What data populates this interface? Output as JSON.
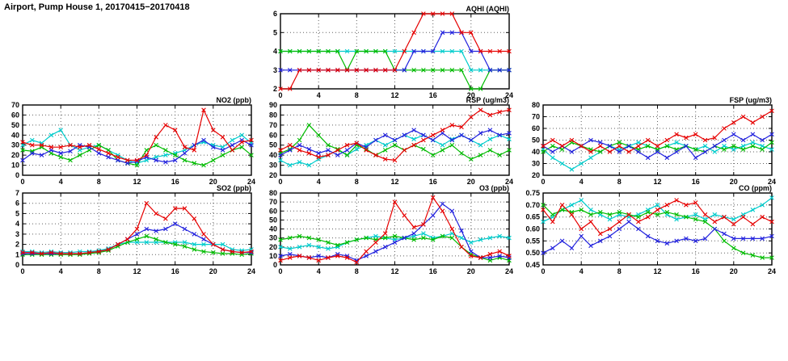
{
  "page": {
    "title": "Airport, Pump House 1, 20170415−20170418"
  },
  "chart_data": [
    {
      "type": "line",
      "title": "AQHI (AQHI)",
      "xlim": [
        0,
        24
      ],
      "xticks": [
        0,
        4,
        8,
        12,
        16,
        20,
        24
      ],
      "ylim": [
        2,
        6
      ],
      "yticks": [
        2,
        3,
        4,
        5,
        6
      ],
      "ytick_labels": [
        "2",
        "3",
        "4",
        "5",
        "6"
      ],
      "grid": true,
      "x_start": 0,
      "x_step": 1,
      "series": [
        {
          "name": "series-cyan",
          "color": "#00cccc",
          "values": [
            4,
            4,
            4,
            4,
            4,
            4,
            4,
            4,
            4,
            4,
            4,
            4,
            4,
            4,
            4,
            4,
            4,
            4,
            4,
            4,
            3,
            3,
            3,
            3,
            3
          ]
        },
        {
          "name": "series-green",
          "color": "#00bb00",
          "values": [
            4,
            4,
            4,
            4,
            4,
            4,
            4,
            3,
            4,
            4,
            4,
            4,
            3,
            3,
            3,
            3,
            3,
            3,
            3,
            3,
            2,
            2,
            3,
            3,
            3
          ]
        },
        {
          "name": "series-blue",
          "color": "#2222dd",
          "values": [
            3,
            3,
            3,
            3,
            3,
            3,
            3,
            3,
            3,
            3,
            3,
            3,
            3,
            3,
            4,
            4,
            4,
            5,
            5,
            5,
            4,
            4,
            3,
            3,
            3
          ]
        },
        {
          "name": "series-red",
          "color": "#e60000",
          "values": [
            2,
            2,
            3,
            3,
            3,
            3,
            3,
            3,
            3,
            3,
            3,
            3,
            3,
            4,
            5,
            6,
            6,
            6,
            6,
            5,
            5,
            4,
            4,
            4,
            4
          ]
        }
      ]
    },
    {
      "type": "line",
      "title": "NO2 (ppb)",
      "xlim": [
        0,
        24
      ],
      "xticks": [
        0,
        4,
        8,
        12,
        16,
        20,
        24
      ],
      "ylim": [
        0,
        70
      ],
      "yticks": [
        0,
        10,
        20,
        30,
        40,
        50,
        60,
        70
      ],
      "ytick_labels": [
        "0",
        "10",
        "20",
        "30",
        "40",
        "50",
        "60",
        "70"
      ],
      "grid": true,
      "x_start": 0,
      "x_step": 1,
      "series": [
        {
          "name": "series-cyan",
          "color": "#00cccc",
          "values": [
            30,
            35,
            32,
            40,
            45,
            30,
            25,
            28,
            30,
            25,
            20,
            15,
            12,
            15,
            18,
            20,
            22,
            25,
            30,
            33,
            30,
            28,
            35,
            40,
            32
          ]
        },
        {
          "name": "series-green",
          "color": "#00bb00",
          "values": [
            25,
            24,
            28,
            22,
            18,
            15,
            20,
            25,
            30,
            25,
            15,
            12,
            10,
            25,
            30,
            25,
            20,
            15,
            12,
            10,
            15,
            20,
            25,
            28,
            20
          ]
        },
        {
          "name": "series-blue",
          "color": "#2222dd",
          "values": [
            15,
            22,
            20,
            25,
            22,
            24,
            30,
            28,
            22,
            18,
            15,
            12,
            14,
            18,
            15,
            13,
            15,
            22,
            30,
            35,
            28,
            25,
            30,
            35,
            30
          ]
        },
        {
          "name": "series-red",
          "color": "#e60000",
          "values": [
            33,
            30,
            30,
            28,
            28,
            30,
            28,
            30,
            26,
            22,
            18,
            15,
            15,
            20,
            38,
            50,
            45,
            28,
            25,
            65,
            45,
            38,
            25,
            33,
            35
          ]
        }
      ]
    },
    {
      "type": "line",
      "title": "RSP (ug/m3)",
      "xlim": [
        0,
        24
      ],
      "xticks": [
        0,
        4,
        8,
        12,
        16,
        20,
        24
      ],
      "ylim": [
        20,
        90
      ],
      "yticks": [
        20,
        30,
        40,
        50,
        60,
        70,
        80,
        90
      ],
      "ytick_labels": [
        "20",
        "30",
        "40",
        "50",
        "60",
        "70",
        "80",
        "90"
      ],
      "grid": true,
      "x_start": 0,
      "x_step": 1,
      "series": [
        {
          "name": "series-cyan",
          "color": "#00cccc",
          "values": [
            35,
            30,
            33,
            30,
            36,
            40,
            45,
            40,
            46,
            50,
            55,
            50,
            55,
            60,
            56,
            60,
            55,
            50,
            56,
            60,
            55,
            50,
            56,
            60,
            56
          ]
        },
        {
          "name": "series-green",
          "color": "#00bb00",
          "values": [
            42,
            46,
            55,
            70,
            60,
            50,
            46,
            40,
            50,
            46,
            40,
            45,
            50,
            45,
            50,
            46,
            40,
            45,
            50,
            42,
            36,
            40,
            45,
            40,
            45
          ]
        },
        {
          "name": "series-blue",
          "color": "#2222dd",
          "values": [
            40,
            45,
            50,
            46,
            42,
            45,
            40,
            45,
            52,
            48,
            55,
            60,
            55,
            60,
            65,
            60,
            55,
            62,
            55,
            60,
            55,
            62,
            65,
            60,
            62
          ]
        },
        {
          "name": "series-red",
          "color": "#e60000",
          "values": [
            45,
            50,
            45,
            42,
            38,
            40,
            45,
            50,
            52,
            45,
            40,
            36,
            35,
            45,
            50,
            55,
            60,
            65,
            70,
            68,
            78,
            85,
            80,
            83,
            85
          ]
        }
      ]
    },
    {
      "type": "line",
      "title": "FSP (ug/m3)",
      "xlim": [
        0,
        24
      ],
      "xticks": [
        0,
        4,
        8,
        12,
        16,
        20,
        24
      ],
      "ylim": [
        20,
        80
      ],
      "yticks": [
        20,
        30,
        40,
        50,
        60,
        70,
        80
      ],
      "ytick_labels": [
        "20",
        "30",
        "40",
        "50",
        "60",
        "70",
        "80"
      ],
      "grid": true,
      "x_start": 0,
      "x_step": 1,
      "series": [
        {
          "name": "series-cyan",
          "color": "#00cccc",
          "values": [
            42,
            35,
            30,
            25,
            30,
            35,
            40,
            45,
            42,
            45,
            48,
            45,
            42,
            45,
            48,
            45,
            42,
            45,
            40,
            45,
            42,
            45,
            48,
            45,
            42
          ]
        },
        {
          "name": "series-green",
          "color": "#00bb00",
          "values": [
            40,
            45,
            42,
            48,
            45,
            42,
            40,
            45,
            48,
            45,
            42,
            45,
            42,
            45,
            42,
            45,
            42,
            40,
            45,
            42,
            45,
            42,
            45,
            42,
            48
          ]
        },
        {
          "name": "series-blue",
          "color": "#2222dd",
          "values": [
            45,
            40,
            45,
            40,
            45,
            50,
            48,
            45,
            40,
            45,
            40,
            35,
            40,
            35,
            40,
            45,
            35,
            40,
            45,
            50,
            55,
            50,
            55,
            50,
            55
          ]
        },
        {
          "name": "series-red",
          "color": "#e60000",
          "values": [
            45,
            50,
            45,
            50,
            45,
            40,
            45,
            40,
            45,
            40,
            45,
            50,
            45,
            50,
            55,
            52,
            55,
            50,
            52,
            60,
            65,
            70,
            65,
            70,
            75
          ]
        }
      ]
    },
    {
      "type": "line",
      "title": "SO2 (ppb)",
      "xlim": [
        0,
        24
      ],
      "xticks": [
        0,
        4,
        8,
        12,
        16,
        20,
        24
      ],
      "ylim": [
        0,
        7
      ],
      "yticks": [
        0,
        1,
        2,
        3,
        4,
        5,
        6,
        7
      ],
      "ytick_labels": [
        "0",
        "1",
        "2",
        "3",
        "4",
        "5",
        "6",
        "7"
      ],
      "grid": true,
      "x_start": 0,
      "x_step": 1,
      "series": [
        {
          "name": "series-cyan",
          "color": "#00cccc",
          "values": [
            1.3,
            1.3,
            1.2,
            1.3,
            1.2,
            1.2,
            1.3,
            1.3,
            1.4,
            1.6,
            2,
            2.2,
            2.2,
            2.2,
            2.2,
            2.2,
            2.2,
            2.2,
            2,
            2,
            2,
            2,
            1.5,
            1.4,
            1.5
          ]
        },
        {
          "name": "series-green",
          "color": "#00bb00",
          "values": [
            1,
            1,
            1,
            1,
            1,
            1,
            1,
            1.1,
            1.2,
            1.4,
            1.8,
            2.2,
            2.5,
            2.8,
            2.5,
            2.2,
            2,
            1.8,
            1.5,
            1.3,
            1.2,
            1.1,
            1.1,
            1,
            1.1
          ]
        },
        {
          "name": "series-blue",
          "color": "#2222dd",
          "values": [
            1.1,
            1.1,
            1.1,
            1.1,
            1.1,
            1.1,
            1.1,
            1.2,
            1.3,
            1.5,
            2,
            2.5,
            3,
            3.5,
            3.3,
            3.5,
            4,
            3.5,
            3,
            2.5,
            2,
            1.5,
            1.3,
            1.2,
            1.2
          ]
        },
        {
          "name": "series-red",
          "color": "#e60000",
          "values": [
            1.2,
            1.2,
            1.1,
            1.2,
            1.1,
            1.1,
            1.1,
            1.2,
            1.3,
            1.5,
            2,
            2.5,
            3.5,
            6,
            5,
            4.5,
            5.5,
            5.5,
            4.5,
            3,
            2,
            1.5,
            1.3,
            1.2,
            1.3
          ]
        }
      ]
    },
    {
      "type": "line",
      "title": "O3 (ppb)",
      "xlim": [
        0,
        24
      ],
      "xticks": [
        0,
        4,
        8,
        12,
        16,
        20,
        24
      ],
      "ylim": [
        0,
        80
      ],
      "yticks": [
        0,
        10,
        20,
        30,
        40,
        50,
        60,
        70,
        80
      ],
      "ytick_labels": [
        "0",
        "10",
        "20",
        "30",
        "40",
        "50",
        "60",
        "70",
        "80"
      ],
      "grid": true,
      "x_start": 0,
      "x_step": 1,
      "series": [
        {
          "name": "series-cyan",
          "color": "#00cccc",
          "values": [
            20,
            18,
            20,
            22,
            20,
            18,
            20,
            25,
            28,
            30,
            32,
            30,
            28,
            30,
            32,
            35,
            30,
            32,
            35,
            30,
            25,
            28,
            30,
            32,
            30
          ]
        },
        {
          "name": "series-green",
          "color": "#00bb00",
          "values": [
            28,
            30,
            32,
            30,
            28,
            25,
            22,
            25,
            28,
            30,
            28,
            30,
            32,
            30,
            28,
            30,
            28,
            32,
            30,
            20,
            12,
            8,
            5,
            8,
            5
          ]
        },
        {
          "name": "series-blue",
          "color": "#2222dd",
          "values": [
            10,
            12,
            10,
            8,
            10,
            8,
            12,
            10,
            5,
            10,
            15,
            20,
            25,
            30,
            35,
            45,
            55,
            68,
            60,
            38,
            15,
            8,
            8,
            10,
            8
          ]
        },
        {
          "name": "series-red",
          "color": "#e60000",
          "values": [
            5,
            8,
            10,
            8,
            5,
            8,
            10,
            8,
            3,
            15,
            25,
            35,
            70,
            55,
            42,
            45,
            75,
            60,
            40,
            20,
            10,
            8,
            12,
            15,
            10
          ]
        }
      ]
    },
    {
      "type": "line",
      "title": "CO (ppm)",
      "xlim": [
        0,
        24
      ],
      "xticks": [
        0,
        4,
        8,
        12,
        16,
        20,
        24
      ],
      "ylim": [
        0.45,
        0.75
      ],
      "yticks": [
        0.45,
        0.5,
        0.55,
        0.6,
        0.65,
        0.7,
        0.75
      ],
      "ytick_labels": [
        "0.45",
        "0.50",
        "0.55",
        "0.60",
        "0.65",
        "0.70",
        "0.75"
      ],
      "grid": true,
      "x_start": 0,
      "x_step": 1,
      "series": [
        {
          "name": "series-cyan",
          "color": "#00cccc",
          "values": [
            0.63,
            0.65,
            0.68,
            0.7,
            0.72,
            0.68,
            0.66,
            0.64,
            0.66,
            0.65,
            0.66,
            0.68,
            0.7,
            0.66,
            0.64,
            0.65,
            0.66,
            0.64,
            0.66,
            0.65,
            0.64,
            0.66,
            0.68,
            0.7,
            0.73
          ]
        },
        {
          "name": "series-green",
          "color": "#00bb00",
          "values": [
            0.7,
            0.66,
            0.68,
            0.67,
            0.68,
            0.66,
            0.67,
            0.66,
            0.67,
            0.66,
            0.65,
            0.67,
            0.66,
            0.67,
            0.66,
            0.65,
            0.64,
            0.63,
            0.6,
            0.55,
            0.52,
            0.5,
            0.49,
            0.48,
            0.48
          ]
        },
        {
          "name": "series-blue",
          "color": "#2222dd",
          "values": [
            0.5,
            0.52,
            0.55,
            0.52,
            0.57,
            0.53,
            0.55,
            0.57,
            0.6,
            0.63,
            0.6,
            0.57,
            0.55,
            0.54,
            0.55,
            0.56,
            0.55,
            0.56,
            0.6,
            0.58,
            0.56,
            0.56,
            0.56,
            0.56,
            0.57
          ]
        },
        {
          "name": "series-red",
          "color": "#e60000",
          "values": [
            0.68,
            0.63,
            0.7,
            0.66,
            0.6,
            0.63,
            0.58,
            0.6,
            0.63,
            0.66,
            0.63,
            0.65,
            0.68,
            0.7,
            0.72,
            0.7,
            0.71,
            0.66,
            0.63,
            0.65,
            0.62,
            0.65,
            0.62,
            0.65,
            0.63
          ]
        }
      ]
    }
  ]
}
